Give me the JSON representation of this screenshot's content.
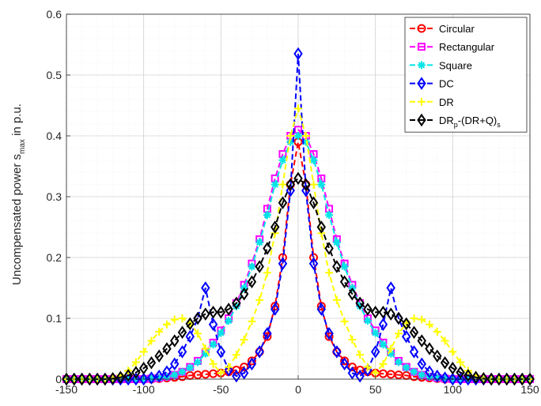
{
  "chart_data": {
    "type": "line",
    "title": "",
    "xlabel": "",
    "ylabel": {
      "prefix": "Uncompensated power s",
      "subscript": "max",
      "suffix": " in p.u."
    },
    "xlim": [
      -150,
      150
    ],
    "ylim": [
      0,
      0.6
    ],
    "x_ticks": [
      -150,
      -100,
      -50,
      0,
      50,
      100,
      150
    ],
    "x_tick_labels": [
      "-150",
      "-100",
      "-50",
      "0",
      "50",
      "100",
      "150"
    ],
    "y_ticks": [
      0,
      0.1,
      0.2,
      0.3,
      0.4,
      0.5,
      0.6
    ],
    "y_tick_labels": [
      "0",
      "0.1",
      "0.2",
      "0.3",
      "0.4",
      "0.5",
      "0.6"
    ],
    "grid": true,
    "minor_grid": true,
    "legend_position": "top-right",
    "series": [
      {
        "name": "Circular",
        "color": "#ff0000",
        "marker": "circle",
        "x": [
          -150,
          -145,
          -140,
          -135,
          -130,
          -125,
          -120,
          -115,
          -110,
          -105,
          -100,
          -95,
          -90,
          -85,
          -80,
          -75,
          -70,
          -65,
          -60,
          -55,
          -50,
          -45,
          -40,
          -35,
          -30,
          -25,
          -20,
          -15,
          -10,
          -5,
          0,
          5,
          10,
          15,
          20,
          25,
          30,
          35,
          40,
          45,
          50,
          55,
          60,
          65,
          70,
          75,
          80,
          85,
          90,
          95,
          100,
          105,
          110,
          115,
          120,
          125,
          130,
          135,
          140,
          145,
          150
        ],
        "y": [
          0,
          0,
          0,
          0,
          0,
          0,
          0,
          0,
          0,
          0,
          0,
          0,
          0.001,
          0.002,
          0.003,
          0.004,
          0.006,
          0.007,
          0.008,
          0.009,
          0.01,
          0.012,
          0.015,
          0.02,
          0.03,
          0.045,
          0.07,
          0.12,
          0.2,
          0.32,
          0.39,
          0.32,
          0.2,
          0.12,
          0.07,
          0.045,
          0.03,
          0.02,
          0.015,
          0.012,
          0.01,
          0.009,
          0.008,
          0.007,
          0.006,
          0.004,
          0.003,
          0.002,
          0.001,
          0,
          0,
          0,
          0,
          0,
          0,
          0,
          0,
          0,
          0,
          0,
          0
        ]
      },
      {
        "name": "Rectangular",
        "color": "#ff00ff",
        "marker": "square",
        "x": [
          -150,
          -145,
          -140,
          -135,
          -130,
          -125,
          -120,
          -115,
          -110,
          -105,
          -100,
          -95,
          -90,
          -85,
          -80,
          -75,
          -70,
          -65,
          -60,
          -55,
          -50,
          -45,
          -40,
          -35,
          -30,
          -25,
          -20,
          -15,
          -10,
          -5,
          0,
          5,
          10,
          15,
          20,
          25,
          30,
          35,
          40,
          45,
          50,
          55,
          60,
          65,
          70,
          75,
          80,
          85,
          90,
          95,
          100,
          105,
          110,
          115,
          120,
          125,
          130,
          135,
          140,
          145,
          150
        ],
        "y": [
          0,
          0,
          0,
          0,
          0,
          0,
          0,
          0,
          0,
          0,
          0,
          0.001,
          0.002,
          0.004,
          0.007,
          0.012,
          0.02,
          0.03,
          0.045,
          0.06,
          0.08,
          0.1,
          0.125,
          0.155,
          0.19,
          0.23,
          0.28,
          0.33,
          0.37,
          0.4,
          0.41,
          0.4,
          0.37,
          0.33,
          0.28,
          0.23,
          0.19,
          0.155,
          0.125,
          0.1,
          0.08,
          0.06,
          0.045,
          0.03,
          0.02,
          0.012,
          0.007,
          0.004,
          0.002,
          0.001,
          0,
          0,
          0,
          0,
          0,
          0,
          0,
          0,
          0,
          0,
          0
        ]
      },
      {
        "name": "Square",
        "color": "#00e5e5",
        "marker": "asterisk",
        "x": [
          -150,
          -145,
          -140,
          -135,
          -130,
          -125,
          -120,
          -115,
          -110,
          -105,
          -100,
          -95,
          -90,
          -85,
          -80,
          -75,
          -70,
          -65,
          -60,
          -55,
          -50,
          -45,
          -40,
          -35,
          -30,
          -25,
          -20,
          -15,
          -10,
          -5,
          0,
          5,
          10,
          15,
          20,
          25,
          30,
          35,
          40,
          45,
          50,
          55,
          60,
          65,
          70,
          75,
          80,
          85,
          90,
          95,
          100,
          105,
          110,
          115,
          120,
          125,
          130,
          135,
          140,
          145,
          150
        ],
        "y": [
          0,
          0,
          0,
          0,
          0,
          0,
          0,
          0,
          0,
          0,
          0,
          0.001,
          0.002,
          0.004,
          0.007,
          0.012,
          0.019,
          0.028,
          0.042,
          0.057,
          0.076,
          0.096,
          0.12,
          0.15,
          0.185,
          0.225,
          0.27,
          0.32,
          0.36,
          0.39,
          0.4,
          0.39,
          0.36,
          0.32,
          0.27,
          0.225,
          0.185,
          0.15,
          0.12,
          0.096,
          0.076,
          0.057,
          0.042,
          0.028,
          0.019,
          0.012,
          0.007,
          0.004,
          0.002,
          0.001,
          0,
          0,
          0,
          0,
          0,
          0,
          0,
          0,
          0,
          0,
          0
        ]
      },
      {
        "name": "DC",
        "color": "#0000ff",
        "marker": "diamond",
        "x": [
          -150,
          -145,
          -140,
          -135,
          -130,
          -125,
          -120,
          -115,
          -110,
          -105,
          -100,
          -95,
          -90,
          -85,
          -80,
          -75,
          -70,
          -65,
          -60,
          -55,
          -50,
          -45,
          -40,
          -35,
          -30,
          -25,
          -20,
          -15,
          -10,
          -5,
          0,
          5,
          10,
          15,
          20,
          25,
          30,
          35,
          40,
          45,
          50,
          55,
          60,
          65,
          70,
          75,
          80,
          85,
          90,
          95,
          100,
          105,
          110,
          115,
          120,
          125,
          130,
          135,
          140,
          145,
          150
        ],
        "y": [
          0,
          0,
          0,
          0,
          0,
          0,
          0,
          0,
          0,
          0,
          0,
          0.002,
          0.005,
          0.012,
          0.025,
          0.045,
          0.07,
          0.1,
          0.15,
          0.09,
          0.045,
          0.015,
          0.005,
          0.01,
          0.025,
          0.045,
          0.075,
          0.115,
          0.19,
          0.31,
          0.535,
          0.31,
          0.19,
          0.115,
          0.075,
          0.045,
          0.025,
          0.01,
          0.005,
          0.015,
          0.045,
          0.09,
          0.15,
          0.1,
          0.07,
          0.045,
          0.025,
          0.012,
          0.005,
          0.002,
          0,
          0,
          0,
          0,
          0,
          0,
          0,
          0,
          0,
          0,
          0
        ]
      },
      {
        "name": "DR",
        "color": "#ffff00",
        "marker": "plus",
        "x": [
          -150,
          -145,
          -140,
          -135,
          -130,
          -125,
          -120,
          -115,
          -110,
          -105,
          -100,
          -95,
          -90,
          -85,
          -80,
          -75,
          -70,
          -65,
          -60,
          -55,
          -50,
          -45,
          -40,
          -35,
          -30,
          -25,
          -20,
          -15,
          -10,
          -5,
          0,
          5,
          10,
          15,
          20,
          25,
          30,
          35,
          40,
          45,
          50,
          55,
          60,
          65,
          70,
          75,
          80,
          85,
          90,
          95,
          100,
          105,
          110,
          115,
          120,
          125,
          130,
          135,
          140,
          145,
          150
        ],
        "y": [
          0,
          0,
          0,
          0,
          0,
          0,
          0.002,
          0.006,
          0.014,
          0.028,
          0.045,
          0.063,
          0.078,
          0.09,
          0.098,
          0.1,
          0.092,
          0.075,
          0.05,
          0.025,
          0.01,
          0.02,
          0.04,
          0.065,
          0.095,
          0.13,
          0.175,
          0.24,
          0.32,
          0.4,
          0.445,
          0.4,
          0.32,
          0.24,
          0.175,
          0.13,
          0.095,
          0.065,
          0.04,
          0.02,
          0.01,
          0.025,
          0.05,
          0.075,
          0.092,
          0.1,
          0.098,
          0.09,
          0.078,
          0.063,
          0.045,
          0.028,
          0.014,
          0.006,
          0.002,
          0,
          0,
          0,
          0,
          0,
          0
        ]
      },
      {
        "name": {
          "main": "DR",
          "sub1": "p",
          "mid": "-(DR+Q)",
          "sub2": "s"
        },
        "color": "#000000",
        "marker": "diamond",
        "x": [
          -150,
          -145,
          -140,
          -135,
          -130,
          -125,
          -120,
          -115,
          -110,
          -105,
          -100,
          -95,
          -90,
          -85,
          -80,
          -75,
          -70,
          -65,
          -60,
          -55,
          -50,
          -45,
          -40,
          -35,
          -30,
          -25,
          -20,
          -15,
          -10,
          -5,
          0,
          5,
          10,
          15,
          20,
          25,
          30,
          35,
          40,
          45,
          50,
          55,
          60,
          65,
          70,
          75,
          80,
          85,
          90,
          95,
          100,
          105,
          110,
          115,
          120,
          125,
          130,
          135,
          140,
          145,
          150
        ],
        "y": [
          0,
          0,
          0,
          0,
          0,
          0,
          0.001,
          0.003,
          0.006,
          0.011,
          0.018,
          0.027,
          0.038,
          0.05,
          0.063,
          0.077,
          0.091,
          0.1,
          0.107,
          0.11,
          0.11,
          0.115,
          0.125,
          0.14,
          0.16,
          0.185,
          0.215,
          0.25,
          0.29,
          0.32,
          0.33,
          0.32,
          0.29,
          0.25,
          0.215,
          0.185,
          0.16,
          0.14,
          0.125,
          0.115,
          0.11,
          0.11,
          0.107,
          0.1,
          0.091,
          0.077,
          0.063,
          0.05,
          0.038,
          0.027,
          0.018,
          0.011,
          0.006,
          0.003,
          0.001,
          0,
          0,
          0,
          0,
          0,
          0
        ]
      }
    ]
  }
}
